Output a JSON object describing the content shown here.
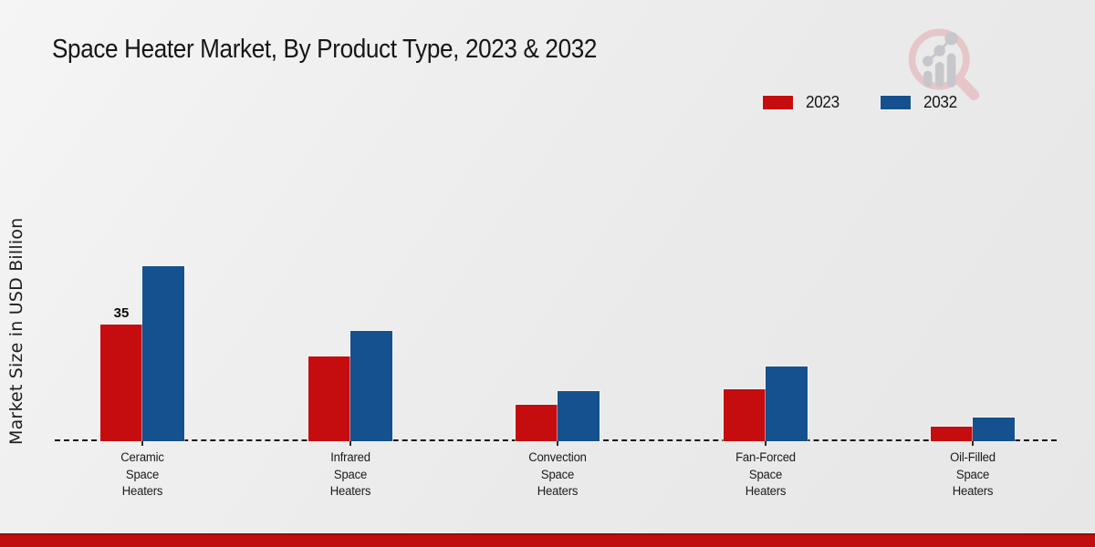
{
  "page": {
    "title": "Space Heater Market, By Product Type, 2023 & 2032"
  },
  "y_axis": {
    "label": "Market Size in USD Billion"
  },
  "legend": {
    "items": [
      {
        "label": "2023",
        "color": "#c50d10"
      },
      {
        "label": "2032",
        "color": "#15518e"
      }
    ]
  },
  "footer": {
    "accent_color": "#c00d0d"
  },
  "watermark": {
    "icon": "magnifier-growth-chart-icon"
  },
  "chart_data": {
    "type": "bar",
    "title": "Space Heater Market, By Product Type, 2023 & 2032",
    "xlabel": "",
    "ylabel": "Market Size in USD Billion",
    "categories": [
      "Ceramic\nSpace\nHeaters",
      "Infrared\nSpace\nHeaters",
      "Convection\nSpace\nHeaters",
      "Fan-Forced\nSpace\nHeaters",
      "Oil-Filled\nSpace\nHeaters"
    ],
    "series": [
      {
        "name": "2023",
        "color": "#c50d10",
        "values": [
          35,
          25.5,
          11,
          15.5,
          4.5
        ]
      },
      {
        "name": "2032",
        "color": "#15518e",
        "values": [
          52.5,
          33,
          15,
          22.5,
          7
        ]
      }
    ],
    "data_labels": [
      {
        "series_index": 0,
        "category_index": 0,
        "text": "35"
      }
    ],
    "ylim": [
      0,
      55
    ],
    "grid": false,
    "legend_position": "top-right",
    "x_axis_style": "dashed-baseline"
  }
}
